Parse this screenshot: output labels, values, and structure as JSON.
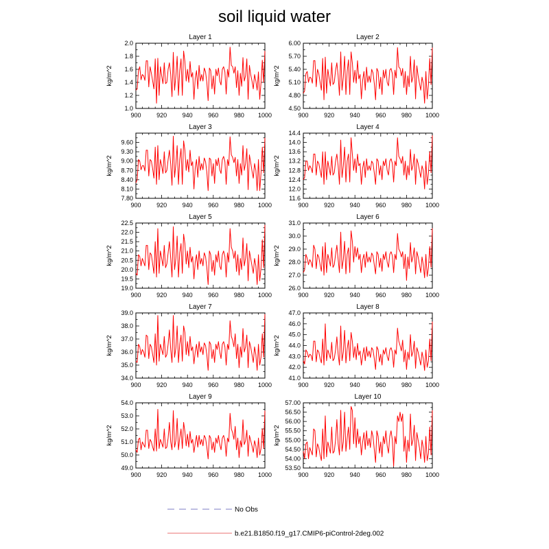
{
  "title": "soil liquid water",
  "chart_data": [
    {
      "type": "line",
      "title": "Layer 1",
      "ylabel": "kg/m^2",
      "xlim": [
        900,
        1000
      ],
      "xticks": [
        900,
        920,
        940,
        960,
        980,
        1000
      ],
      "ylim": [
        1.0,
        2.0
      ],
      "yticks": [
        "1.0",
        "1.2",
        "1.4",
        "1.6",
        "1.8",
        "2.0"
      ],
      "x_start": 900,
      "values": [
        1.28,
        1.3,
        1.58,
        1.64,
        1.44,
        1.52,
        1.5,
        1.43,
        1.73,
        1.73,
        1.33,
        1.64,
        1.54,
        1.42,
        1.3,
        1.76,
        1.08,
        1.77,
        1.2,
        1.64,
        1.5,
        1.38,
        1.7,
        1.38,
        1.4,
        1.6,
        1.7,
        1.52,
        1.18,
        1.86,
        1.28,
        1.5,
        1.8,
        1.2,
        1.58,
        1.76,
        1.2,
        1.88,
        1.72,
        1.42,
        1.6,
        1.4,
        1.72,
        1.48,
        1.55,
        1.14,
        1.46,
        1.58,
        1.3,
        1.66,
        1.42,
        1.52,
        1.42,
        1.62,
        1.56,
        1.4,
        1.12,
        1.62,
        1.58,
        1.3,
        1.5,
        1.22,
        1.6,
        1.5,
        1.62,
        1.42,
        1.36,
        1.6,
        1.64,
        1.56,
        1.22,
        1.6,
        1.48,
        1.94,
        1.66,
        1.64,
        1.54,
        1.64,
        1.32,
        1.58,
        1.2,
        1.54,
        1.34,
        1.78,
        1.42,
        1.5,
        1.76,
        1.14,
        1.66,
        1.52,
        1.42,
        1.3,
        1.52,
        1.42,
        1.28,
        1.56,
        1.14,
        1.4,
        1.74,
        1.4,
        1.88
      ]
    },
    {
      "type": "line",
      "title": "Layer 2",
      "ylabel": "kg/m^2",
      "xlim": [
        900,
        1000
      ],
      "xticks": [
        900,
        920,
        940,
        960,
        980,
        1000
      ],
      "ylim": [
        4.5,
        6.0
      ],
      "yticks": [
        "4.50",
        "4.80",
        "5.10",
        "5.40",
        "5.70",
        "6.00"
      ],
      "x_start": 900,
      "values": [
        4.85,
        4.9,
        5.3,
        5.35,
        5.1,
        5.22,
        5.2,
        5.08,
        5.6,
        5.6,
        5.0,
        5.4,
        5.3,
        5.1,
        4.92,
        5.65,
        4.7,
        5.68,
        4.85,
        5.4,
        5.2,
        5.02,
        5.55,
        5.05,
        5.1,
        5.38,
        5.55,
        5.25,
        4.8,
        5.8,
        4.92,
        5.22,
        5.7,
        4.82,
        5.35,
        5.62,
        4.82,
        5.8,
        5.55,
        5.1,
        5.38,
        5.08,
        5.6,
        5.18,
        5.28,
        4.72,
        5.15,
        5.35,
        4.92,
        5.45,
        5.1,
        5.25,
        5.1,
        5.4,
        5.32,
        5.08,
        4.7,
        5.42,
        5.35,
        4.95,
        5.22,
        4.82,
        5.38,
        5.2,
        5.4,
        5.1,
        5.02,
        5.38,
        5.42,
        5.3,
        4.82,
        5.38,
        5.2,
        5.9,
        5.45,
        5.42,
        5.25,
        5.42,
        4.98,
        5.35,
        4.82,
        5.25,
        5.0,
        5.7,
        5.1,
        5.22,
        5.62,
        4.72,
        5.48,
        5.25,
        5.08,
        4.92,
        5.22,
        5.08,
        4.62,
        5.35,
        4.72,
        5.05,
        5.65,
        5.05,
        5.9
      ]
    },
    {
      "type": "line",
      "title": "Layer 3",
      "ylabel": "kg/m^2",
      "xlim": [
        900,
        1000
      ],
      "xticks": [
        900,
        920,
        940,
        960,
        980,
        1000
      ],
      "ylim": [
        7.8,
        9.9
      ],
      "yticks": [
        "7.80",
        "8.10",
        "8.40",
        "8.70",
        "9.00",
        "9.30",
        "9.60"
      ],
      "x_start": 900,
      "values": [
        8.3,
        8.4,
        9.05,
        9.0,
        8.72,
        8.85,
        8.85,
        8.68,
        9.35,
        9.35,
        8.52,
        9.05,
        9.0,
        8.75,
        8.45,
        9.45,
        8.25,
        9.5,
        8.4,
        9.05,
        8.85,
        8.6,
        9.3,
        8.62,
        8.7,
        9.05,
        9.35,
        8.9,
        8.22,
        9.8,
        8.48,
        8.9,
        9.5,
        8.25,
        9.05,
        9.4,
        8.25,
        9.65,
        9.35,
        8.7,
        9.05,
        8.65,
        9.35,
        8.85,
        8.98,
        8.1,
        8.78,
        9.05,
        8.48,
        9.15,
        8.7,
        8.92,
        8.72,
        9.1,
        8.98,
        8.65,
        8.05,
        9.1,
        9.05,
        8.52,
        8.92,
        8.28,
        9.05,
        8.85,
        9.1,
        8.72,
        8.6,
        9.05,
        9.15,
        8.98,
        8.25,
        9.05,
        8.85,
        9.78,
        9.2,
        9.12,
        8.95,
        9.12,
        8.52,
        9.05,
        8.28,
        8.92,
        8.55,
        9.5,
        8.7,
        8.92,
        9.4,
        8.08,
        9.2,
        8.95,
        8.68,
        8.45,
        8.92,
        8.7,
        8.05,
        9.05,
        8.05,
        8.62,
        9.45,
        8.62,
        9.75
      ]
    },
    {
      "type": "line",
      "title": "Layer 4",
      "ylabel": "kg/m^2",
      "xlim": [
        900,
        1000
      ],
      "xticks": [
        900,
        920,
        940,
        960,
        980,
        1000
      ],
      "ylim": [
        11.6,
        14.4
      ],
      "yticks": [
        "11.6",
        "12.0",
        "12.4",
        "12.8",
        "13.2",
        "13.6",
        "14.0",
        "14.4"
      ],
      "x_start": 900,
      "values": [
        12.4,
        12.5,
        13.2,
        13.2,
        12.8,
        13.0,
        12.9,
        12.7,
        13.5,
        13.5,
        12.6,
        13.2,
        13.1,
        12.8,
        12.5,
        13.6,
        12.2,
        13.6,
        12.4,
        13.2,
        12.9,
        12.6,
        13.4,
        12.6,
        12.7,
        13.2,
        13.5,
        13.0,
        12.2,
        14.1,
        12.5,
        13.0,
        13.8,
        12.3,
        13.2,
        13.5,
        12.3,
        14.2,
        13.5,
        12.8,
        13.3,
        12.7,
        13.5,
        13.0,
        13.1,
        12.2,
        12.9,
        13.2,
        12.5,
        13.3,
        12.8,
        13.0,
        12.8,
        13.2,
        13.1,
        12.7,
        12.2,
        13.3,
        13.2,
        12.6,
        13.0,
        12.4,
        13.2,
        13.0,
        13.3,
        12.8,
        12.6,
        13.2,
        13.3,
        13.1,
        12.3,
        13.2,
        13.0,
        14.2,
        13.4,
        13.3,
        13.1,
        13.4,
        12.6,
        13.2,
        12.4,
        13.0,
        12.6,
        13.7,
        12.8,
        13.0,
        13.5,
        12.2,
        13.3,
        13.1,
        12.8,
        12.5,
        13.0,
        12.8,
        12.0,
        13.2,
        12.2,
        12.7,
        13.6,
        12.7,
        14.3
      ]
    },
    {
      "type": "line",
      "title": "Layer 5",
      "ylabel": "kg/m^2",
      "xlim": [
        900,
        1000
      ],
      "xticks": [
        900,
        920,
        940,
        960,
        980,
        1000
      ],
      "ylim": [
        19.0,
        22.5
      ],
      "yticks": [
        "19.0",
        "19.5",
        "20.0",
        "20.5",
        "21.0",
        "21.5",
        "22.0",
        "22.5"
      ],
      "x_start": 900,
      "values": [
        19.8,
        19.7,
        20.8,
        20.7,
        20.2,
        20.6,
        20.4,
        20.2,
        21.3,
        21.3,
        20.0,
        20.9,
        20.8,
        20.3,
        19.8,
        21.5,
        19.6,
        22.2,
        19.8,
        21.0,
        20.6,
        20.2,
        21.3,
        20.1,
        20.3,
        20.9,
        21.5,
        20.6,
        19.6,
        22.3,
        20.0,
        20.6,
        21.8,
        19.6,
        20.9,
        21.4,
        19.8,
        21.9,
        21.4,
        20.3,
        21.0,
        20.1,
        21.2,
        20.4,
        20.7,
        19.5,
        20.4,
        20.8,
        20.0,
        21.0,
        20.3,
        20.6,
        20.2,
        20.9,
        20.7,
        20.1,
        19.2,
        21.0,
        20.8,
        19.9,
        20.5,
        19.7,
        20.8,
        20.4,
        21.0,
        20.2,
        20.0,
        20.8,
        21.0,
        20.7,
        19.6,
        20.9,
        20.4,
        22.2,
        21.2,
        21.0,
        20.6,
        21.0,
        19.9,
        20.8,
        19.7,
        20.6,
        20.0,
        21.7,
        20.2,
        20.6,
        21.4,
        19.4,
        21.0,
        20.6,
        20.2,
        19.8,
        20.6,
        20.2,
        19.2,
        20.8,
        19.4,
        20.1,
        21.6,
        20.1,
        22.4
      ]
    },
    {
      "type": "line",
      "title": "Layer 6",
      "ylabel": "kg/m^2",
      "xlim": [
        900,
        1000
      ],
      "xticks": [
        900,
        920,
        940,
        960,
        980,
        1000
      ],
      "ylim": [
        26.0,
        31.0
      ],
      "yticks": [
        "26.0",
        "27.0",
        "28.0",
        "29.0",
        "30.0",
        "31.0"
      ],
      "x_start": 900,
      "values": [
        27.2,
        27.4,
        28.6,
        28.3,
        27.8,
        28.2,
        28.0,
        27.6,
        29.3,
        29.0,
        27.5,
        28.6,
        28.4,
        27.8,
        27.3,
        29.2,
        27.0,
        29.5,
        27.2,
        28.6,
        28.2,
        27.7,
        29.1,
        27.6,
        27.8,
        28.6,
        29.3,
        28.2,
        27.2,
        30.3,
        27.5,
        28.2,
        29.6,
        27.1,
        28.6,
        29.1,
        27.2,
        30.4,
        29.6,
        28.0,
        29.2,
        28.4,
        29.1,
        28.2,
        28.6,
        27.2,
        28.2,
        28.6,
        27.6,
        28.8,
        28.0,
        28.4,
        28.0,
        28.7,
        28.5,
        27.8,
        27.1,
        28.8,
        28.6,
        27.6,
        28.3,
        27.3,
        28.6,
        28.2,
        28.8,
        28.0,
        27.6,
        28.6,
        28.8,
        28.5,
        27.2,
        28.6,
        28.2,
        30.2,
        29.0,
        28.8,
        28.4,
        28.8,
        27.5,
        28.6,
        26.6,
        28.4,
        27.5,
        29.5,
        28.0,
        28.4,
        29.1,
        27.1,
        28.8,
        28.4,
        27.8,
        27.2,
        28.4,
        27.8,
        26.8,
        28.6,
        26.9,
        27.6,
        29.2,
        27.6,
        30.6
      ]
    },
    {
      "type": "line",
      "title": "Layer 7",
      "ylabel": "kg/m^2",
      "xlim": [
        900,
        1000
      ],
      "xticks": [
        900,
        920,
        940,
        960,
        980,
        1000
      ],
      "ylim": [
        34.0,
        39.0
      ],
      "yticks": [
        "34.0",
        "35.0",
        "36.0",
        "37.0",
        "38.0",
        "39.0"
      ],
      "x_start": 900,
      "values": [
        35.3,
        35.2,
        36.6,
        36.4,
        35.8,
        36.2,
        36.0,
        35.6,
        37.3,
        37.2,
        35.5,
        36.6,
        36.4,
        35.8,
        35.2,
        37.4,
        35.0,
        38.8,
        35.3,
        36.6,
        36.2,
        35.8,
        37.2,
        35.6,
        35.8,
        36.6,
        37.7,
        36.2,
        35.2,
        38.8,
        35.6,
        36.3,
        38.0,
        35.2,
        36.6,
        37.3,
        35.3,
        38.0,
        37.5,
        35.8,
        36.8,
        35.7,
        37.2,
        36.1,
        36.4,
        35.1,
        36.0,
        36.6,
        35.6,
        36.8,
        36.0,
        36.4,
        35.8,
        36.7,
        36.5,
        35.8,
        34.6,
        36.8,
        36.6,
        35.5,
        36.2,
        35.2,
        36.6,
        36.2,
        36.8,
        36.0,
        35.5,
        36.6,
        36.8,
        36.4,
        35.0,
        36.6,
        36.2,
        38.4,
        37.2,
        36.9,
        36.4,
        37.4,
        35.5,
        36.6,
        34.8,
        36.4,
        35.6,
        37.8,
        36.0,
        36.4,
        37.3,
        34.8,
        36.8,
        36.4,
        35.8,
        35.2,
        36.4,
        35.8,
        34.6,
        36.6,
        35.0,
        35.6,
        37.4,
        35.6,
        38.9
      ]
    },
    {
      "type": "line",
      "title": "Layer 8",
      "ylabel": "kg/m^2",
      "xlim": [
        900,
        1000
      ],
      "xticks": [
        900,
        920,
        940,
        960,
        980,
        1000
      ],
      "ylim": [
        41.0,
        47.0
      ],
      "yticks": [
        "41.0",
        "42.0",
        "43.0",
        "44.0",
        "45.0",
        "46.0",
        "47.0"
      ],
      "x_start": 900,
      "values": [
        42.6,
        42.3,
        43.6,
        43.4,
        42.9,
        43.2,
        43.1,
        42.6,
        44.4,
        44.4,
        42.5,
        43.6,
        43.4,
        42.8,
        42.4,
        44.6,
        42.2,
        46.0,
        42.6,
        43.6,
        43.2,
        42.8,
        44.3,
        42.6,
        42.8,
        43.6,
        44.8,
        43.2,
        42.2,
        45.8,
        42.6,
        43.4,
        45.4,
        42.4,
        43.7,
        44.5,
        42.6,
        45.2,
        44.4,
        42.9,
        43.9,
        42.7,
        44.2,
        43.1,
        43.5,
        42.2,
        43.1,
        43.8,
        42.6,
        43.9,
        43.0,
        43.5,
        42.9,
        43.8,
        43.6,
        42.8,
        41.8,
        43.9,
        43.6,
        42.5,
        43.2,
        42.2,
        43.6,
        43.2,
        43.8,
        43.0,
        42.6,
        43.6,
        43.8,
        43.4,
        42.0,
        43.6,
        43.2,
        45.6,
        44.4,
        44.0,
        43.5,
        44.5,
        42.5,
        43.6,
        41.8,
        43.4,
        42.7,
        45.0,
        43.0,
        43.4,
        44.4,
        41.9,
        43.8,
        43.4,
        42.8,
        42.2,
        43.4,
        42.8,
        41.7,
        43.6,
        42.0,
        42.6,
        44.6,
        42.6,
        46.2
      ]
    },
    {
      "type": "line",
      "title": "Layer 9",
      "ylabel": "kg/m^2",
      "xlim": [
        900,
        1000
      ],
      "xticks": [
        900,
        920,
        940,
        960,
        980,
        1000
      ],
      "ylim": [
        49.0,
        54.0
      ],
      "yticks": [
        "49.0",
        "50.0",
        "51.0",
        "52.0",
        "53.0",
        "54.0"
      ],
      "x_start": 900,
      "values": [
        50.4,
        50.2,
        51.2,
        51.3,
        50.4,
        51.0,
        50.8,
        50.6,
        51.9,
        51.9,
        50.5,
        51.2,
        51.0,
        50.6,
        50.3,
        52.0,
        50.3,
        53.5,
        50.5,
        51.2,
        50.9,
        50.6,
        52.0,
        50.5,
        50.6,
        51.3,
        52.5,
        51.0,
        50.4,
        53.4,
        50.6,
        51.1,
        52.8,
        50.4,
        51.3,
        52.0,
        50.5,
        52.5,
        51.8,
        50.7,
        51.6,
        50.6,
        51.8,
        50.9,
        51.2,
        50.2,
        50.9,
        51.5,
        50.6,
        51.5,
        50.8,
        51.2,
        50.7,
        51.5,
        51.3,
        50.6,
        49.7,
        51.5,
        51.3,
        50.4,
        51.0,
        50.2,
        51.3,
        50.9,
        51.5,
        50.8,
        50.4,
        51.3,
        51.5,
        51.1,
        49.9,
        51.3,
        51.0,
        53.2,
        52.0,
        51.7,
        51.2,
        52.2,
        50.4,
        51.3,
        49.8,
        51.1,
        50.6,
        52.7,
        50.8,
        51.1,
        51.9,
        49.9,
        51.5,
        51.1,
        50.7,
        50.2,
        51.1,
        50.7,
        49.8,
        51.3,
        50.0,
        50.5,
        52.0,
        50.5,
        53.4
      ]
    },
    {
      "type": "line",
      "title": "Layer 10",
      "ylabel": "kg/m^2",
      "xlim": [
        900,
        1000
      ],
      "xticks": [
        900,
        920,
        940,
        960,
        980,
        1000
      ],
      "ylim": [
        53.5,
        57.0
      ],
      "yticks": [
        "53.50",
        "54.00",
        "54.50",
        "55.00",
        "55.50",
        "56.00",
        "56.50",
        "57.00"
      ],
      "x_start": 900,
      "values": [
        54.4,
        54.0,
        54.8,
        54.9,
        54.0,
        54.6,
        54.4,
        54.2,
        55.6,
        55.5,
        54.1,
        54.8,
        54.6,
        54.2,
        53.9,
        55.6,
        54.0,
        56.3,
        54.1,
        54.9,
        54.6,
        54.3,
        55.7,
        54.3,
        54.4,
        55.0,
        56.1,
        54.8,
        54.2,
        56.6,
        54.4,
        54.9,
        56.5,
        54.4,
        55.1,
        55.7,
        54.5,
        56.8,
        56.6,
        54.8,
        56.2,
        54.6,
        55.6,
        54.8,
        55.2,
        54.2,
        54.9,
        55.4,
        54.5,
        55.5,
        54.7,
        55.1,
        54.6,
        55.5,
        55.2,
        54.5,
        53.8,
        55.5,
        55.2,
        54.3,
        54.9,
        54.1,
        55.2,
        54.8,
        55.5,
        54.7,
        54.3,
        55.2,
        55.5,
        55.0,
        53.6,
        55.2,
        54.8,
        56.3,
        56.0,
        56.5,
        56.0,
        56.4,
        54.4,
        55.2,
        53.8,
        55.0,
        54.4,
        56.4,
        54.7,
        55.0,
        55.8,
        53.9,
        55.4,
        55.0,
        54.6,
        54.0,
        55.0,
        54.6,
        53.8,
        55.2,
        53.9,
        54.3,
        55.7,
        54.2,
        56.6
      ]
    }
  ],
  "legend": [
    {
      "label": "No Obs",
      "color": "#a7a7d8",
      "dash": "10,7"
    },
    {
      "label": "b.e21.B1850.f19_g17.CMIP6-piControl-2deg.002",
      "color": "#f0a0a0",
      "dash": ""
    }
  ],
  "line_color": "#ff0000"
}
